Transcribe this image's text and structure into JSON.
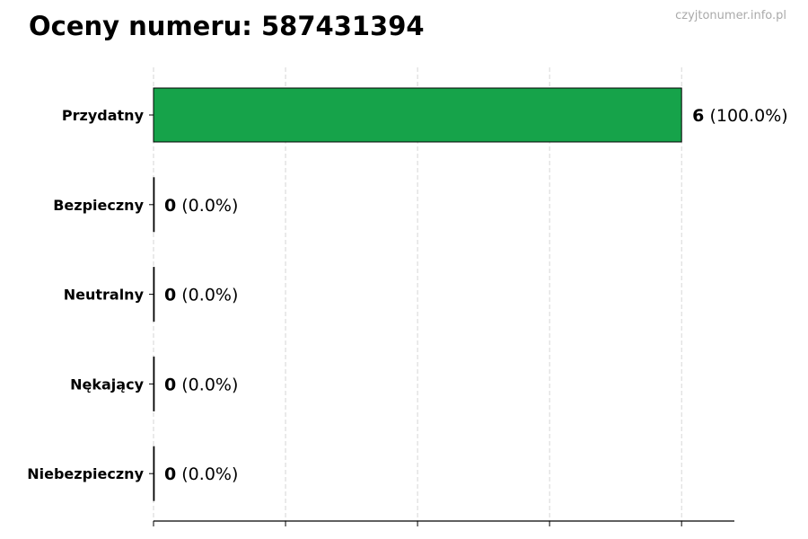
{
  "header": {
    "title": "Oceny numeru: 587431394",
    "watermark": "czyjtonumer.info.pl"
  },
  "chart_data": {
    "type": "bar",
    "orientation": "horizontal",
    "title": "Oceny numeru: 587431394",
    "categories": [
      "Przydatny",
      "Bezpieczny",
      "Neutralny",
      "Nękający",
      "Niebezpieczny"
    ],
    "values": [
      6,
      0,
      0,
      0,
      0
    ],
    "labels": [
      {
        "count": "6",
        "percent": "(100.0%)"
      },
      {
        "count": "0",
        "percent": "(0.0%)"
      },
      {
        "count": "0",
        "percent": "(0.0%)"
      },
      {
        "count": "0",
        "percent": "(0.0%)"
      },
      {
        "count": "0",
        "percent": "(0.0%)"
      }
    ],
    "xlim": [
      0,
      6.6
    ],
    "xticks": [
      0,
      1.5,
      3,
      4.5,
      6
    ],
    "xtick_labels_shown": false,
    "grid": "vertical dashed",
    "bar_color": "#16a34a",
    "edge_color": "#000000",
    "xlabel": "",
    "ylabel": ""
  }
}
